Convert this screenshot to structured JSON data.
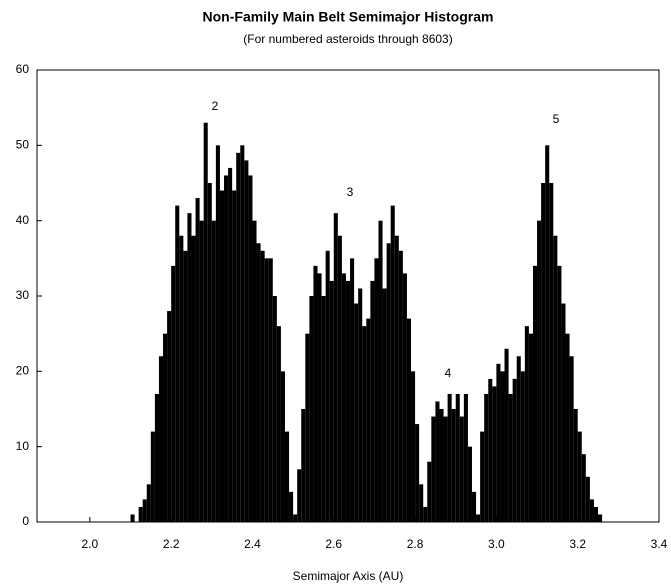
{
  "chart_data": {
    "type": "histogram",
    "title": "Non-Family Main Belt Semimajor Histogram",
    "subtitle": "(For numbered asteroids through 8603)",
    "x_label": "Semimajor Axis (AU)",
    "annotations": [
      "2",
      "3",
      "4",
      "5"
    ],
    "color": "#000000",
    "bins": [
      2.1,
      2.11,
      2.12,
      2.13,
      2.14,
      2.15,
      2.16,
      2.17,
      2.18,
      2.19,
      2.2,
      2.21,
      2.22,
      2.23,
      2.24,
      2.25,
      2.26,
      2.27,
      2.28,
      2.29,
      2.3,
      2.31,
      2.32,
      2.33,
      2.34,
      2.35,
      2.36,
      2.37,
      2.38,
      2.39,
      2.4,
      2.41,
      2.42,
      2.43,
      2.44,
      2.45,
      2.46,
      2.47,
      2.48,
      2.49,
      2.5,
      2.51,
      2.52,
      2.53,
      2.54,
      2.55,
      2.56,
      2.57,
      2.58,
      2.59,
      2.6,
      2.61,
      2.62,
      2.63,
      2.64,
      2.65,
      2.66,
      2.67,
      2.68,
      2.69,
      2.7,
      2.71,
      2.72,
      2.73,
      2.74,
      2.75,
      2.76,
      2.77,
      2.78,
      2.79,
      2.8,
      2.81,
      2.82,
      2.83,
      2.84,
      2.85,
      2.86,
      2.87,
      2.88,
      2.89,
      2.9,
      2.91,
      2.92,
      2.93,
      2.94,
      2.95,
      2.96,
      2.97,
      2.98,
      2.99,
      3.0,
      3.01,
      3.02,
      3.03,
      3.04,
      3.05,
      3.06,
      3.07,
      3.08,
      3.09,
      3.1,
      3.11,
      3.12,
      3.13,
      3.14,
      3.15,
      3.16,
      3.17,
      3.18,
      3.19,
      3.2,
      3.21,
      3.22,
      3.23,
      3.24,
      3.25,
      3.26
    ],
    "values": [
      1,
      0,
      2,
      3,
      5,
      12,
      17,
      22,
      25,
      28,
      34,
      42,
      38,
      36,
      41,
      38,
      43,
      40,
      53,
      45,
      40,
      50,
      44,
      46,
      47,
      44,
      49,
      50,
      48,
      46,
      40,
      37,
      36,
      35,
      35,
      30,
      26,
      20,
      12,
      4,
      1,
      7,
      15,
      25,
      30,
      34,
      33,
      30,
      36,
      32,
      41,
      38,
      33,
      32,
      35,
      29,
      31,
      26,
      27,
      32,
      35,
      40,
      31,
      37,
      42,
      38,
      36,
      33,
      27,
      20,
      13,
      5,
      2,
      8,
      14,
      16,
      15,
      14,
      17,
      15,
      17,
      14,
      17,
      10,
      4,
      1,
      12,
      17,
      19,
      18,
      21,
      20,
      23,
      17,
      19,
      22,
      20,
      26,
      25,
      34,
      40,
      45,
      50,
      45,
      38,
      34,
      29,
      25,
      22,
      15,
      12,
      9,
      6,
      3,
      2,
      1
    ],
    "xlim": [
      1.87,
      3.4
    ],
    "xticks": [
      {
        "value": 2,
        "label": "2.0"
      },
      2.2,
      2.4,
      2.6,
      2.8,
      {
        "value": 3,
        "label": "3.0"
      },
      3.2,
      3.4
    ],
    "ylim": [
      0,
      60
    ],
    "yticks": [
      0,
      10,
      20,
      30,
      40,
      50,
      60
    ]
  }
}
